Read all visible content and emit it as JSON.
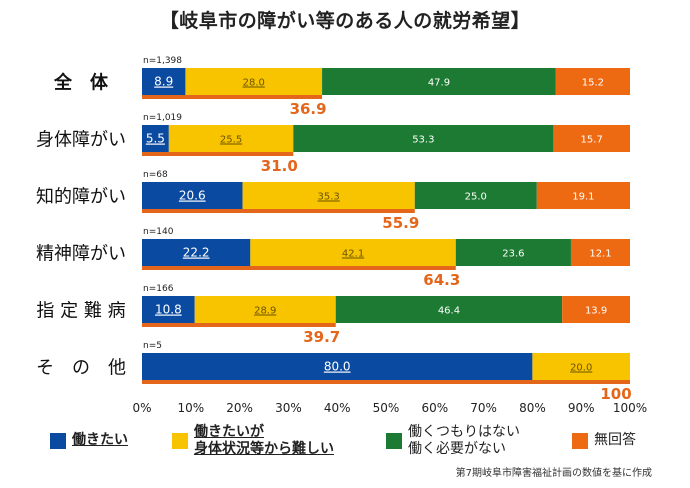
{
  "colors": {
    "want_to_work": "#0a4aa0",
    "want_but_difficult": "#f8c400",
    "not_intend": "#1d7a32",
    "no_answer": "#ee6a12",
    "underline_bar": "#e3661b",
    "highlight_text": "#e3661b"
  },
  "chart_data": {
    "type": "stacked-bar-horizontal",
    "title": "【岐阜市の障がい等のある人の就労希望】",
    "xlim": [
      0,
      100
    ],
    "x_ticks": [
      "0%",
      "10%",
      "20%",
      "30%",
      "40%",
      "50%",
      "60%",
      "70%",
      "80%",
      "90%",
      "100%"
    ],
    "series_names": [
      "働きたい",
      "働きたいが身体状況等から難しい",
      "働くつもりはない働く必要がない",
      "無回答"
    ],
    "categories": [
      {
        "label": "全　体",
        "n": "n=1,398",
        "values": [
          8.9,
          28.0,
          47.9,
          15.2
        ],
        "value_labels": [
          "8.9",
          "28.0",
          "47.9",
          "15.2"
        ],
        "total_label": "36.9"
      },
      {
        "label": "身体障がい",
        "n": "n=1,019",
        "values": [
          5.5,
          25.5,
          53.3,
          15.7
        ],
        "value_labels": [
          "5.5",
          "25.5",
          "53.3",
          "15.7"
        ],
        "total_label": "31.0"
      },
      {
        "label": "知的障がい",
        "n": "n=68",
        "values": [
          20.6,
          35.3,
          25.0,
          19.1
        ],
        "value_labels": [
          "20.6",
          "35.3",
          "25.0",
          "19.1"
        ],
        "total_label": "55.9"
      },
      {
        "label": "精神障がい",
        "n": "n=140",
        "values": [
          22.2,
          42.1,
          23.6,
          12.1
        ],
        "value_labels": [
          "22.2",
          "42.1",
          "23.6",
          "12.1"
        ],
        "total_label": "64.3"
      },
      {
        "label": "指 定 難 病",
        "n": "n=166",
        "values": [
          10.8,
          28.9,
          46.4,
          13.9
        ],
        "value_labels": [
          "10.8",
          "28.9",
          "46.4",
          "13.9"
        ],
        "total_label": "39.7"
      },
      {
        "label": "そ　の　他",
        "n": "n=5",
        "values": [
          80.0,
          20.0,
          0,
          0
        ],
        "value_labels": [
          "80.0",
          "20.0",
          "",
          ""
        ],
        "total_label": "100"
      }
    ]
  },
  "legend": {
    "want_to_work": "働きたい",
    "want_but_difficult_line1": "働きたいが",
    "want_but_difficult_line2": "身体状況等から難しい",
    "not_intend_line1": "働くつもりはない",
    "not_intend_line2": "働く必要がない",
    "no_answer": "無回答"
  },
  "source": "第7期岐阜市障害福祉計画の数値を基に作成"
}
